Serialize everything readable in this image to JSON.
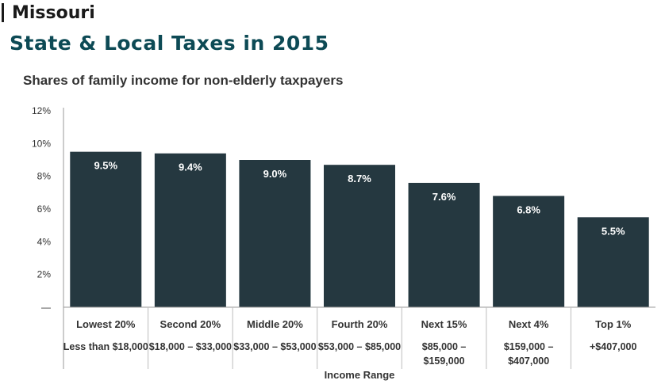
{
  "header": {
    "state": "Missouri",
    "title": "State & Local Taxes in 2015"
  },
  "chart_data": {
    "type": "bar",
    "title": "Shares of family income for non-elderly taxpayers",
    "xlabel": "Income Range",
    "ylabel": "",
    "ylim": [
      0,
      12
    ],
    "yticks": [
      "—",
      "2%",
      "4%",
      "6%",
      "8%",
      "10%",
      "12%"
    ],
    "grid": false,
    "bar_color": "#253840",
    "categories": [
      "Lowest 20%",
      "Second 20%",
      "Middle 20%",
      "Fourth 20%",
      "Next 15%",
      "Next 4%",
      "Top 1%"
    ],
    "income_ranges": [
      [
        "Less than $18,000"
      ],
      [
        "$18,000 – $33,000"
      ],
      [
        "$33,000 – $53,000"
      ],
      [
        "$53,000 – $85,000"
      ],
      [
        "$85,000 –",
        "$159,000"
      ],
      [
        "$159,000 –",
        "$407,000"
      ],
      [
        "+$407,000"
      ]
    ],
    "values": [
      9.5,
      9.4,
      9.0,
      8.7,
      7.6,
      6.8,
      5.5
    ],
    "value_labels": [
      "9.5%",
      "9.4%",
      "9.0%",
      "8.7%",
      "7.6%",
      "6.8%",
      "5.5%"
    ]
  }
}
